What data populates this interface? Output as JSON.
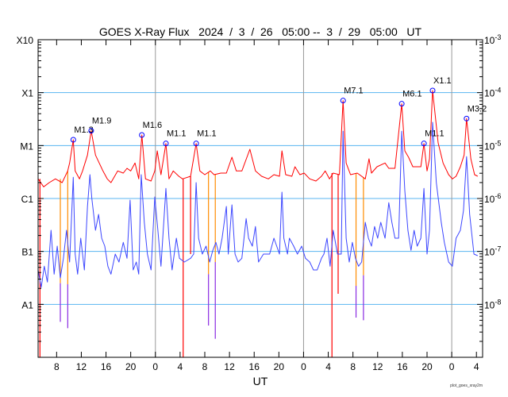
{
  "chart_data": {
    "type": "line",
    "title": "GOES X-Ray Flux   2024  /  3  /  26   05:00 --  3  /  29   05:00   UT",
    "xlabel": "UT",
    "footer": "plot_goes_xray2m",
    "x_unit": "hours since 2024-03-26 05:00 UT",
    "xlim": [
      0,
      72
    ],
    "ylim_log10": [
      -9,
      -3
    ],
    "y_scale": "log",
    "x_tick_labels": [
      {
        "t": 3,
        "label": "8"
      },
      {
        "t": 7,
        "label": "12"
      },
      {
        "t": 11,
        "label": "16"
      },
      {
        "t": 15,
        "label": "20"
      },
      {
        "t": 19,
        "label": "0"
      },
      {
        "t": 23,
        "label": "4"
      },
      {
        "t": 27,
        "label": "8"
      },
      {
        "t": 31,
        "label": "12"
      },
      {
        "t": 35,
        "label": "16"
      },
      {
        "t": 39,
        "label": "20"
      },
      {
        "t": 43,
        "label": "0"
      },
      {
        "t": 47,
        "label": "4"
      },
      {
        "t": 51,
        "label": "8"
      },
      {
        "t": 55,
        "label": "12"
      },
      {
        "t": 59,
        "label": "16"
      },
      {
        "t": 63,
        "label": "20"
      },
      {
        "t": 67,
        "label": "0"
      },
      {
        "t": 71,
        "label": "4"
      }
    ],
    "day_boundaries": [
      19,
      43,
      67
    ],
    "left_labels": [
      {
        "log": -3,
        "label": "X10"
      },
      {
        "log": -4,
        "label": "X1"
      },
      {
        "log": -5,
        "label": "M1"
      },
      {
        "log": -6,
        "label": "C1"
      },
      {
        "log": -7,
        "label": "B1"
      },
      {
        "log": -8,
        "label": "A1"
      }
    ],
    "right_labels": [
      {
        "log": -3,
        "base": "10",
        "exp": "-3"
      },
      {
        "log": -4,
        "base": "10",
        "exp": "-4"
      },
      {
        "log": -5,
        "base": "10",
        "exp": "-5"
      },
      {
        "log": -6,
        "base": "10",
        "exp": "-6"
      },
      {
        "log": -7,
        "base": "10",
        "exp": "-7"
      },
      {
        "log": -8,
        "base": "10",
        "exp": "-8"
      }
    ],
    "grid_levels": [
      -4,
      -5,
      -6,
      -7,
      -8
    ],
    "colors": {
      "long": "#ff0000",
      "short": "#3c46ff",
      "grid": "#5ab4f0",
      "day": "#999999",
      "orange": "#ff8c00",
      "purple": "#8a2be2",
      "marker": "#0000ff"
    },
    "series": [
      {
        "name": "long (1-8 Å)",
        "color": "#ff0000",
        "t": [
          0,
          0.9,
          1.8,
          2.8,
          3.9,
          4.8,
          5.1,
          5.7,
          6.0,
          6.7,
          7.2,
          8.0,
          8.6,
          9.3,
          9.9,
          10.5,
          11.2,
          11.8,
          12.9,
          13.8,
          14.4,
          15.0,
          15.7,
          16.3,
          16.8,
          17.4,
          18.3,
          18.9,
          19.3,
          19.9,
          20.7,
          21.2,
          21.9,
          22.8,
          23.4,
          24.7,
          25.6,
          26.2,
          27.0,
          27.9,
          28.5,
          29.6,
          30.5,
          31.4,
          32.1,
          33.0,
          34.3,
          35.2,
          36.2,
          37.3,
          38.2,
          39.1,
          39.5,
          40.1,
          41.1,
          41.6,
          42.4,
          43.1,
          44.0,
          45.0,
          45.9,
          46.5,
          47.2,
          47.8,
          48.8,
          49.4,
          49.9,
          50.6,
          51.7,
          53.0,
          53.6,
          54.0,
          54.9,
          56.2,
          56.8,
          57.8,
          58.9,
          59.4,
          60.0,
          60.7,
          62.0,
          62.5,
          63.0,
          63.4,
          63.9,
          64.8,
          65.6,
          66.5,
          67.1,
          67.7,
          68.4,
          69.0,
          69.4,
          70.1,
          70.7,
          71.2
        ],
        "log_flux": [
          -5.63,
          -5.78,
          -5.7,
          -5.63,
          -5.7,
          -5.48,
          -5.33,
          -4.89,
          -5.48,
          -5.63,
          -5.48,
          -5.18,
          -4.72,
          -5.18,
          -5.33,
          -5.48,
          -5.63,
          -5.7,
          -5.48,
          -5.52,
          -5.43,
          -5.48,
          -5.33,
          -5.63,
          -4.8,
          -5.63,
          -5.67,
          -5.48,
          -5.1,
          -5.55,
          -4.96,
          -5.63,
          -5.48,
          -5.58,
          -5.63,
          -5.58,
          -4.96,
          -5.48,
          -5.55,
          -5.48,
          -5.55,
          -5.52,
          -5.52,
          -5.22,
          -5.48,
          -5.48,
          -5.07,
          -5.48,
          -5.58,
          -5.63,
          -5.55,
          -5.58,
          -5.1,
          -5.55,
          -5.58,
          -5.4,
          -5.55,
          -5.52,
          -5.63,
          -5.67,
          -5.58,
          -5.48,
          -5.63,
          -5.52,
          -5.55,
          -4.15,
          -5.33,
          -5.55,
          -5.52,
          -5.63,
          -5.25,
          -5.52,
          -5.4,
          -5.33,
          -5.43,
          -5.43,
          -4.21,
          -5.1,
          -5.22,
          -5.4,
          -5.4,
          -4.96,
          -5.48,
          -5.25,
          -3.96,
          -4.95,
          -5.33,
          -5.55,
          -5.63,
          -5.58,
          -5.4,
          -5.18,
          -4.49,
          -5.25,
          -5.55,
          -5.58
        ]
      },
      {
        "name": "short (0.5-4 Å)",
        "color": "#3c46ff",
        "t": [
          0,
          0.5,
          1.0,
          1.5,
          2.1,
          2.6,
          3.1,
          3.6,
          4.1,
          4.6,
          5.1,
          5.7,
          6.0,
          6.4,
          6.9,
          7.5,
          8.0,
          8.4,
          8.7,
          9.3,
          9.8,
          10.3,
          10.8,
          11.3,
          11.8,
          12.5,
          13.1,
          13.8,
          14.4,
          14.9,
          15.4,
          15.9,
          16.3,
          16.7,
          17.2,
          17.7,
          18.3,
          18.9,
          19.4,
          19.9,
          20.7,
          21.2,
          21.7,
          22.4,
          22.9,
          23.7,
          24.7,
          25.2,
          25.6,
          26.0,
          26.6,
          27.2,
          27.8,
          28.3,
          28.8,
          29.3,
          29.8,
          30.5,
          30.8,
          31.4,
          31.9,
          32.4,
          33.0,
          33.7,
          34.1,
          34.7,
          35.2,
          35.7,
          36.5,
          37.5,
          38.2,
          39.1,
          39.5,
          39.8,
          40.4,
          40.7,
          41.4,
          42.0,
          42.7,
          43.3,
          44.0,
          44.6,
          45.2,
          45.9,
          46.3,
          46.8,
          47.3,
          47.8,
          48.5,
          49.1,
          49.4,
          49.9,
          50.4,
          50.9,
          51.4,
          51.9,
          52.4,
          53.0,
          53.5,
          54.0,
          54.5,
          55.0,
          55.5,
          56.2,
          56.8,
          57.3,
          57.8,
          58.4,
          58.9,
          59.4,
          59.9,
          60.4,
          60.9,
          61.4,
          62.0,
          62.5,
          63.0,
          63.4,
          63.9,
          64.5,
          65.3,
          65.8,
          66.5,
          67.1,
          67.7,
          68.4,
          68.9,
          69.4,
          69.9,
          70.6,
          71.2
        ],
        "log_flux": [
          -7.35,
          -7.68,
          -7.28,
          -7.58,
          -6.6,
          -7.43,
          -6.9,
          -7.5,
          -7.13,
          -6.6,
          -7.2,
          -5.6,
          -7.05,
          -7.43,
          -6.75,
          -7.35,
          -6.15,
          -5.55,
          -6.0,
          -6.6,
          -6.3,
          -6.75,
          -6.9,
          -7.28,
          -7.43,
          -7.05,
          -7.2,
          -6.83,
          -7.13,
          -6.03,
          -7.35,
          -7.2,
          -7.43,
          -5.55,
          -6.45,
          -7.05,
          -7.35,
          -5.97,
          -6.6,
          -7.28,
          -5.81,
          -6.75,
          -7.35,
          -6.75,
          -7.13,
          -7.2,
          -7.13,
          -7.05,
          -5.7,
          -6.75,
          -7.05,
          -6.9,
          -7.2,
          -6.98,
          -6.83,
          -7.05,
          -6.75,
          -6.15,
          -7.05,
          -6.12,
          -7.05,
          -7.2,
          -7.13,
          -6.38,
          -6.75,
          -6.9,
          -6.53,
          -7.2,
          -7.05,
          -7.05,
          -6.75,
          -7.05,
          -5.88,
          -6.75,
          -7.05,
          -6.75,
          -6.9,
          -7.05,
          -6.9,
          -7.13,
          -7.2,
          -7.35,
          -7.35,
          -7.13,
          -7.05,
          -6.75,
          -7.28,
          -6.6,
          -7.05,
          -7.05,
          -4.73,
          -6.75,
          -7.2,
          -6.83,
          -7.13,
          -7.28,
          -7.2,
          -6.45,
          -6.75,
          -6.9,
          -6.53,
          -6.75,
          -6.45,
          -6.75,
          -6.08,
          -6.45,
          -6.75,
          -6.75,
          -4.73,
          -5.85,
          -6.6,
          -6.98,
          -6.6,
          -6.9,
          -6.75,
          -5.81,
          -7.05,
          -6.6,
          -4.56,
          -5.7,
          -6.45,
          -6.83,
          -7.2,
          -7.28,
          -6.75,
          -6.6,
          -6.23,
          -5.21,
          -6.3,
          -7.05,
          -7.08
        ]
      }
    ],
    "dropouts": [
      {
        "t": 0.3,
        "from": -5.63,
        "to": -9,
        "color": "#ff0000"
      },
      {
        "t": 23.5,
        "from": -5.63,
        "to": -9,
        "color": "#ff0000"
      },
      {
        "t": 24.7,
        "from": -5.58,
        "to": -7.05,
        "color": "#ff0000"
      },
      {
        "t": 47.6,
        "from": -5.52,
        "to": -9,
        "color": "#ff0000"
      },
      {
        "t": 48.6,
        "from": -5.55,
        "to": -7.8,
        "color": "#ff0000"
      },
      {
        "t": 3.6,
        "from": -5.63,
        "to": -7.6,
        "color": "#ff8c00"
      },
      {
        "t": 3.6,
        "from": -7.6,
        "to": -8.33,
        "color": "#8a2be2"
      },
      {
        "t": 4.8,
        "from": -5.48,
        "to": -7.62,
        "color": "#ff8c00"
      },
      {
        "t": 4.8,
        "from": -7.62,
        "to": -8.45,
        "color": "#8a2be2"
      },
      {
        "t": 27.6,
        "from": -5.5,
        "to": -7.43,
        "color": "#ff8c00"
      },
      {
        "t": 27.6,
        "from": -7.43,
        "to": -8.4,
        "color": "#8a2be2"
      },
      {
        "t": 28.7,
        "from": -5.55,
        "to": -7.2,
        "color": "#ff8c00"
      },
      {
        "t": 28.7,
        "from": -7.2,
        "to": -8.65,
        "color": "#8a2be2"
      },
      {
        "t": 51.5,
        "from": -5.52,
        "to": -7.65,
        "color": "#ff8c00"
      },
      {
        "t": 51.5,
        "from": -7.65,
        "to": -8.25,
        "color": "#8a2be2"
      },
      {
        "t": 52.7,
        "from": -5.6,
        "to": -7.45,
        "color": "#ff8c00"
      },
      {
        "t": 52.7,
        "from": -7.45,
        "to": -8.3,
        "color": "#8a2be2"
      }
    ],
    "flares": [
      {
        "t": 5.7,
        "log_flux": -4.89,
        "label": "M1.3"
      },
      {
        "t": 8.6,
        "log_flux": -4.72,
        "label": "M1.9"
      },
      {
        "t": 16.8,
        "log_flux": -4.8,
        "label": "M1.6"
      },
      {
        "t": 20.7,
        "log_flux": -4.96,
        "label": "M1.1"
      },
      {
        "t": 25.6,
        "log_flux": -4.96,
        "label": "M1.1"
      },
      {
        "t": 49.4,
        "log_flux": -4.15,
        "label": "M7.1"
      },
      {
        "t": 58.9,
        "log_flux": -4.21,
        "label": "M6.1"
      },
      {
        "t": 62.5,
        "log_flux": -4.96,
        "label": "M1.1"
      },
      {
        "t": 63.9,
        "log_flux": -3.96,
        "label": "X1.1"
      },
      {
        "t": 69.4,
        "log_flux": -4.49,
        "label": "M3.2"
      }
    ]
  }
}
